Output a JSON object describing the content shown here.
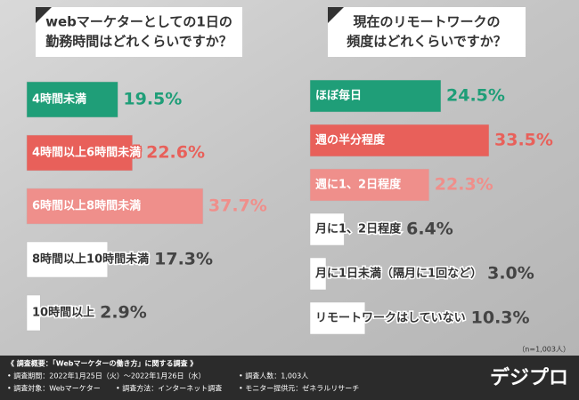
{
  "chart_data": [
    {
      "type": "bar",
      "title": [
        "webマーケターとしての1日の",
        "勤務時間はどれくらいですか？"
      ],
      "categories": [
        "4時間未満",
        "4時間以上6時間未満",
        "6時間以上8時間未満",
        "8時間以上10時間未満",
        "10時間以上"
      ],
      "values": [
        19.5,
        22.6,
        37.7,
        17.3,
        2.9
      ],
      "value_labels": [
        "19.5%",
        "22.6%",
        "37.7%",
        "17.3%",
        "2.9%"
      ],
      "colors": [
        "#1f9e78",
        "#e8605a",
        "#ef8f8b",
        "#ffffff",
        "#ffffff"
      ],
      "label_colors": [
        "#ffffff",
        "#ffffff",
        "#ffffff",
        "#333333",
        "#333333"
      ],
      "value_colors": [
        "#1f9e78",
        "#e8605a",
        "#ef8f8b",
        "#444444",
        "#444444"
      ],
      "xlim": [
        0,
        40
      ]
    },
    {
      "type": "bar",
      "title": [
        "現在のリモートワークの",
        "頻度はどれくらいですか？"
      ],
      "categories": [
        "ほぼ毎日",
        "週の半分程度",
        "週に1、2日程度",
        "月に1、2日程度",
        "月に1日未満（隔月に1回など）",
        "リモートワークはしていない"
      ],
      "values": [
        24.5,
        33.5,
        22.3,
        6.4,
        3.0,
        10.3
      ],
      "value_labels": [
        "24.5%",
        "33.5%",
        "22.3%",
        "6.4%",
        "3.0%",
        "10.3%"
      ],
      "colors": [
        "#1f9e78",
        "#e8605a",
        "#ef8f8b",
        "#ffffff",
        "#ffffff",
        "#ffffff"
      ],
      "label_colors": [
        "#ffffff",
        "#ffffff",
        "#ffffff",
        "#333333",
        "#333333",
        "#333333"
      ],
      "value_colors": [
        "#1f9e78",
        "#e8605a",
        "#ef8f8b",
        "#444444",
        "#444444",
        "#444444"
      ],
      "xlim": [
        0,
        40
      ],
      "note": "（n=1,003人）"
    }
  ],
  "footer": {
    "heading": "《 調査概要：「Webマーケターの働き方」に関する調査 》",
    "items": [
      "• 調査期間：2022年1月25日（火）～2022年1月26日（水）",
      "• 調査人数：1,003人",
      "• 調査対象：Webマーケター",
      "• 調査方法：インターネット調査",
      "• モニター提供元：ゼネラルリサーチ"
    ],
    "logo": "デジプロ"
  }
}
